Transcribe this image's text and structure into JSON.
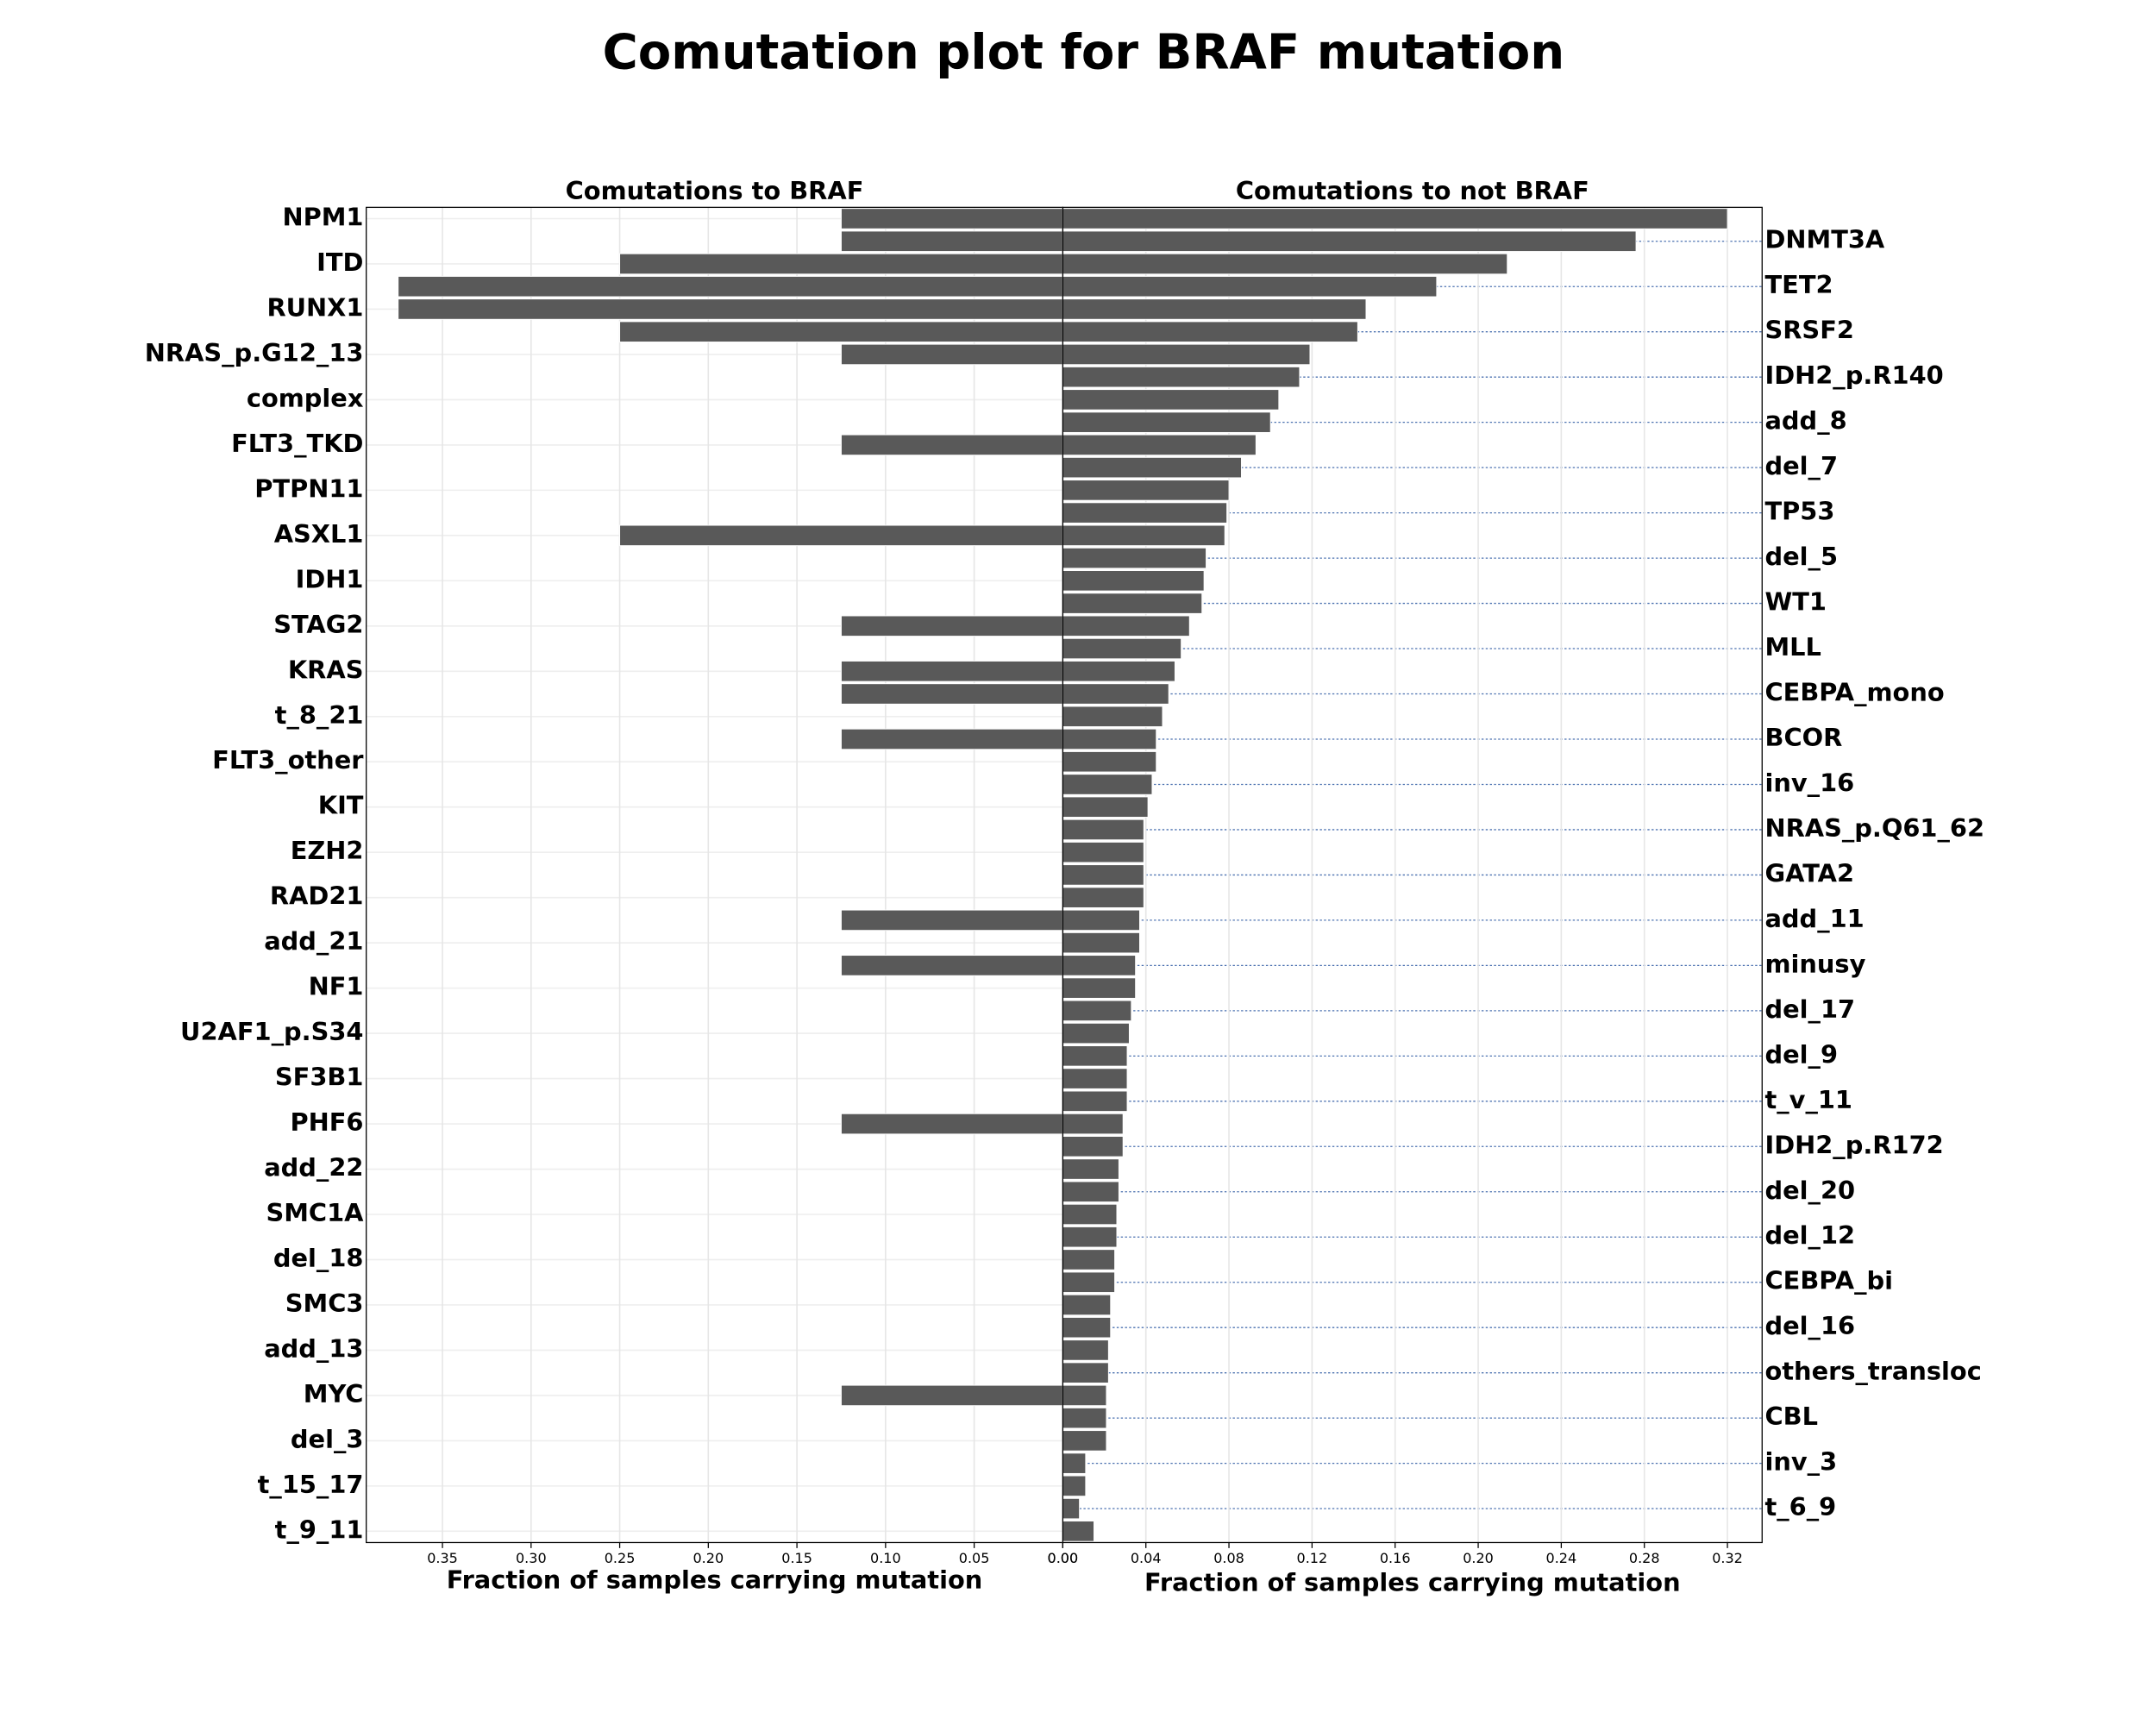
{
  "chart_data": {
    "type": "bar",
    "orientation": "horizontal",
    "title": "Comutation plot for BRAF mutation",
    "color": "#595959",
    "grid": true,
    "categories": [
      "NPM1",
      "DNMT3A",
      "ITD",
      "TET2",
      "RUNX1",
      "SRSF2",
      "NRAS_p.G12_13",
      "IDH2_p.R140",
      "complex",
      "add_8",
      "FLT3_TKD",
      "del_7",
      "PTPN11",
      "TP53",
      "ASXL1",
      "del_5",
      "IDH1",
      "WT1",
      "STAG2",
      "MLL",
      "KRAS",
      "CEBPA_mono",
      "t_8_21",
      "BCOR",
      "FLT3_other",
      "inv_16",
      "KIT",
      "NRAS_p.Q61_62",
      "EZH2",
      "GATA2",
      "RAD21",
      "add_11",
      "add_21",
      "minusy",
      "NF1",
      "del_17",
      "U2AF1_p.S34",
      "del_9",
      "SF3B1",
      "t_v_11",
      "PHF6",
      "IDH2_p.R172",
      "add_22",
      "del_20",
      "SMC1A",
      "del_12",
      "del_18",
      "CEBPA_bi",
      "SMC3",
      "del_16",
      "add_13",
      "others_transloc",
      "MYC",
      "CBL",
      "del_3",
      "inv_3",
      "t_15_17",
      "t_6_9",
      "t_9_11"
    ],
    "panels": [
      {
        "subtitle": "Comutations to BRAF",
        "xlabel": "Fraction of samples carrying mutation",
        "xlim": [
          0,
          0.393
        ],
        "inverted": true,
        "label_side": "left",
        "xticks": [
          {
            "value": 0,
            "label": "0.00"
          },
          {
            "value": 0.05,
            "label": "0.05"
          },
          {
            "value": 0.1,
            "label": "0.10"
          },
          {
            "value": 0.15,
            "label": "0.15"
          },
          {
            "value": 0.2,
            "label": "0.20"
          },
          {
            "value": 0.25,
            "label": "0.25"
          },
          {
            "value": 0.3,
            "label": "0.30"
          },
          {
            "value": 0.35,
            "label": "0.35"
          }
        ],
        "values": [
          0.125,
          0.125,
          0.25,
          0.375,
          0.375,
          0.25,
          0.125,
          0,
          0,
          0,
          0.125,
          0,
          0,
          0,
          0.25,
          0,
          0,
          0,
          0.125,
          0,
          0.125,
          0.125,
          0,
          0.125,
          0,
          0,
          0,
          0,
          0,
          0,
          0,
          0.125,
          0,
          0.125,
          0,
          0,
          0,
          0,
          0,
          0,
          0.125,
          0,
          0,
          0,
          0,
          0,
          0,
          0,
          0,
          0,
          0,
          0,
          0.125,
          0,
          0,
          0,
          0,
          0,
          0
        ]
      },
      {
        "subtitle": "Comutations to not BRAF",
        "xlabel": "Fraction of samples carrying mutation",
        "xlim": [
          0,
          0.3367
        ],
        "inverted": false,
        "label_side": "right",
        "xticks": [
          {
            "value": 0,
            "label": "0.00"
          },
          {
            "value": 0.04,
            "label": "0.04"
          },
          {
            "value": 0.08,
            "label": "0.08"
          },
          {
            "value": 0.12,
            "label": "0.12"
          },
          {
            "value": 0.16,
            "label": "0.16"
          },
          {
            "value": 0.2,
            "label": "0.20"
          },
          {
            "value": 0.24,
            "label": "0.24"
          },
          {
            "value": 0.28,
            "label": "0.28"
          },
          {
            "value": 0.32,
            "label": "0.32"
          }
        ],
        "values": [
          0.32,
          0.276,
          0.214,
          0.18,
          0.146,
          0.142,
          0.119,
          0.114,
          0.104,
          0.1,
          0.093,
          0.086,
          0.08,
          0.079,
          0.078,
          0.069,
          0.068,
          0.067,
          0.061,
          0.057,
          0.054,
          0.051,
          0.048,
          0.045,
          0.045,
          0.043,
          0.041,
          0.039,
          0.039,
          0.039,
          0.039,
          0.037,
          0.037,
          0.035,
          0.035,
          0.033,
          0.032,
          0.031,
          0.031,
          0.031,
          0.029,
          0.029,
          0.027,
          0.027,
          0.026,
          0.026,
          0.025,
          0.025,
          0.023,
          0.023,
          0.022,
          0.022,
          0.021,
          0.021,
          0.021,
          0.011,
          0.011,
          0.008,
          0.015
        ]
      }
    ]
  }
}
